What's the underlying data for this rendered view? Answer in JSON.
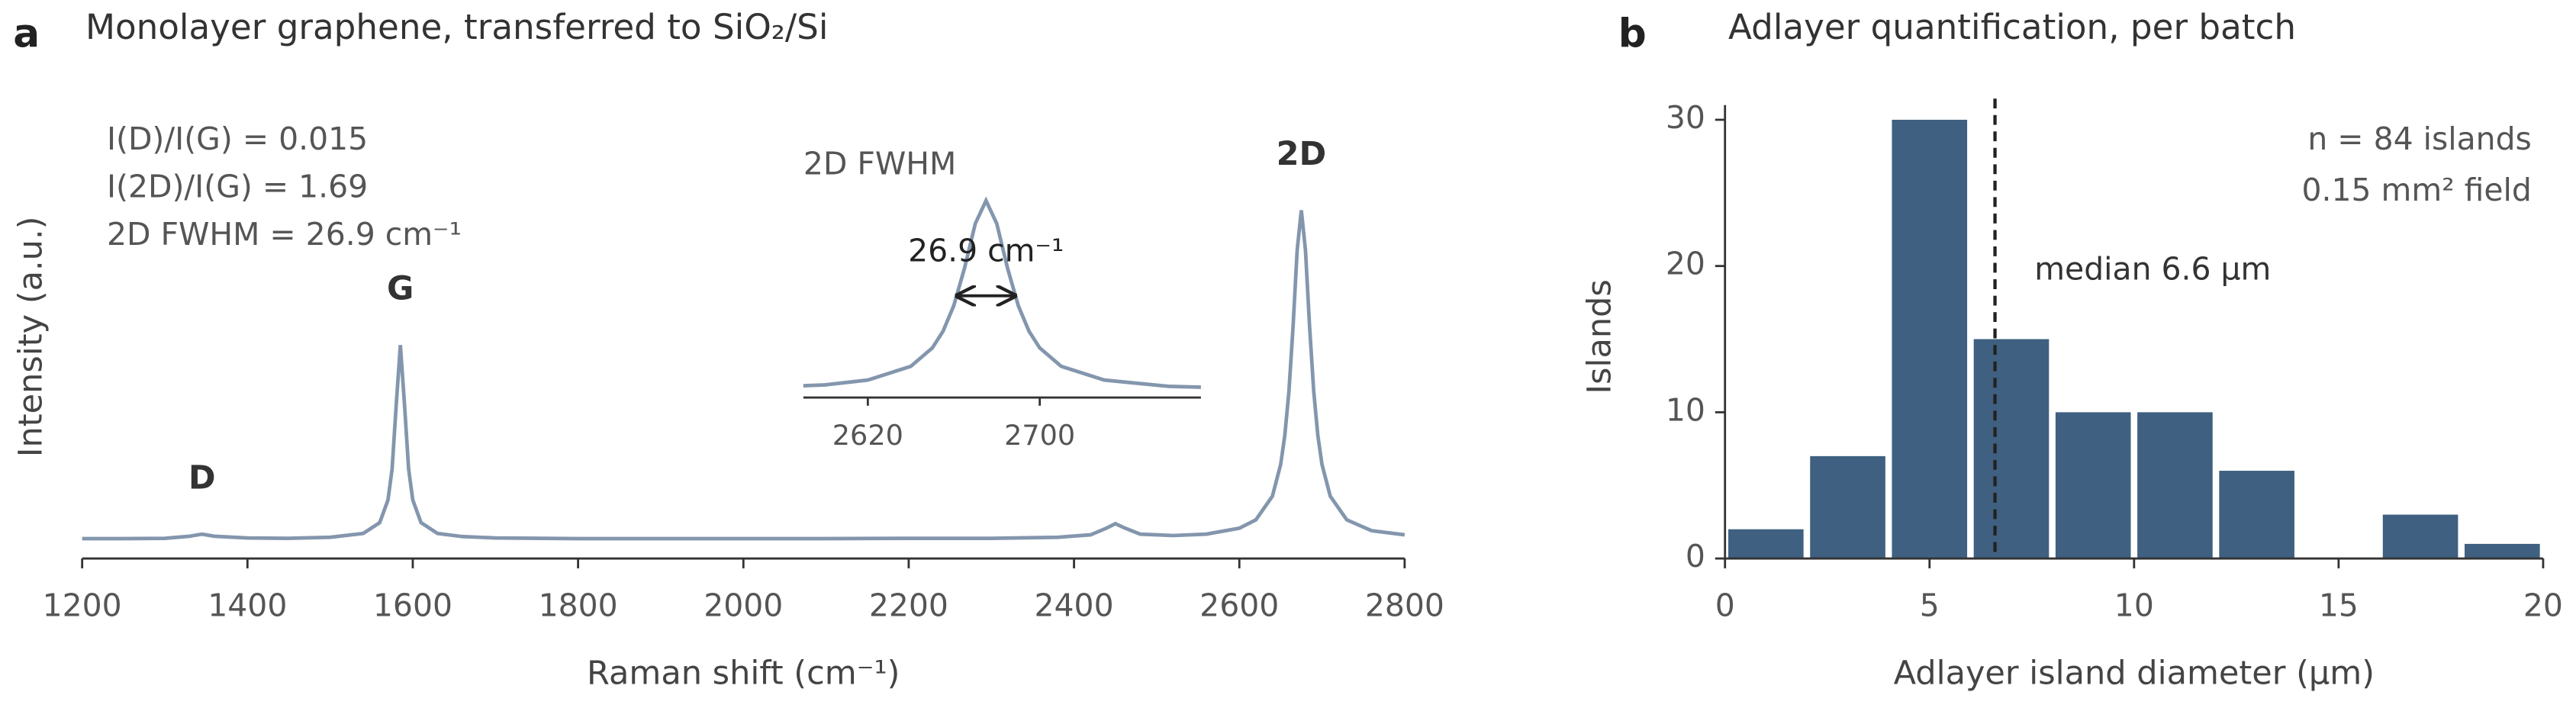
{
  "chart_data": [
    {
      "type": "line",
      "panel": "a",
      "title": "Monolayer graphene, transferred to SiO₂/Si",
      "x_label": "Raman shift (cm⁻¹)",
      "y_label": "Intensity (a.u.)",
      "color": "#8396ad",
      "xlim": [
        1200,
        2800
      ],
      "ylim": [
        0,
        1.05
      ],
      "xticks": [
        1200,
        1400,
        1600,
        1800,
        2000,
        2200,
        2400,
        2600,
        2800
      ],
      "x": [
        1200,
        1250,
        1300,
        1330,
        1345,
        1360,
        1400,
        1450,
        1500,
        1540,
        1560,
        1570,
        1575,
        1580,
        1585,
        1590,
        1595,
        1600,
        1610,
        1630,
        1660,
        1700,
        1800,
        1900,
        2000,
        2100,
        2200,
        2300,
        2380,
        2420,
        2440,
        2450,
        2460,
        2480,
        2520,
        2560,
        2600,
        2620,
        2640,
        2650,
        2655,
        2660,
        2665,
        2670,
        2675,
        2680,
        2685,
        2690,
        2695,
        2700,
        2710,
        2730,
        2760,
        2800
      ],
      "values": [
        0.057,
        0.057,
        0.058,
        0.064,
        0.07,
        0.064,
        0.059,
        0.058,
        0.061,
        0.072,
        0.103,
        0.168,
        0.257,
        0.442,
        0.613,
        0.442,
        0.257,
        0.168,
        0.103,
        0.072,
        0.063,
        0.059,
        0.057,
        0.057,
        0.057,
        0.057,
        0.058,
        0.058,
        0.061,
        0.068,
        0.088,
        0.1,
        0.089,
        0.07,
        0.066,
        0.07,
        0.087,
        0.111,
        0.179,
        0.27,
        0.353,
        0.48,
        0.666,
        0.886,
        1.0,
        0.886,
        0.666,
        0.48,
        0.353,
        0.27,
        0.179,
        0.111,
        0.08,
        0.068
      ],
      "peaks": [
        {
          "label": "D",
          "x": 1345
        },
        {
          "label": "G",
          "x": 1585
        },
        {
          "label": "2D",
          "x": 2675
        }
      ],
      "annotations": [
        "I(D)/I(G) = 0.015",
        "I(2D)/I(G) = 1.69",
        "2D FWHM = 26.9 cm⁻¹"
      ],
      "inset": {
        "title": "2D FWHM",
        "xlim": [
          2590,
          2775
        ],
        "ylim": [
          0,
          1.05
        ],
        "xticks": [
          2620,
          2700
        ],
        "fwhm": {
          "value": 26.9,
          "label": "26.9 cm⁻¹"
        }
      }
    },
    {
      "type": "histogram",
      "panel": "b",
      "title": "Adlayer quantification, per batch",
      "x_label": "Adlayer island diameter (μm)",
      "y_label": "Islands",
      "color": "#3f6080",
      "bins": [
        0,
        2,
        4,
        6,
        8,
        10,
        12,
        14,
        16,
        18,
        20
      ],
      "values": [
        2,
        7,
        30,
        15,
        10,
        10,
        6,
        0,
        3,
        1
      ],
      "xlim": [
        0,
        20
      ],
      "ylim": [
        0,
        31
      ],
      "xticks": [
        0,
        5,
        10,
        15,
        20
      ],
      "yticks": [
        0,
        10,
        20,
        30
      ],
      "median": {
        "value": 6.6,
        "label": "median 6.6 μm"
      },
      "annotations": [
        "n = 84 islands",
        "0.15 mm² field"
      ]
    }
  ]
}
